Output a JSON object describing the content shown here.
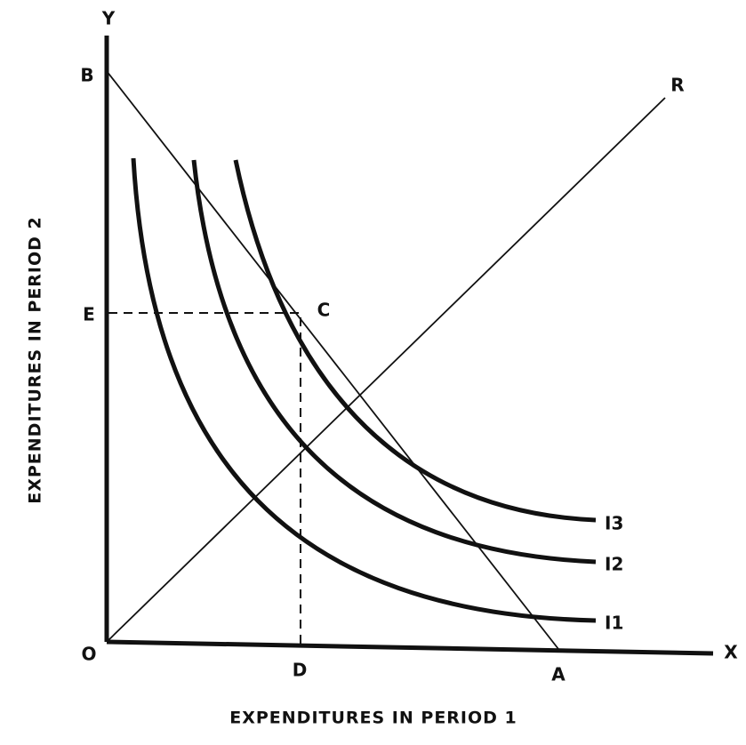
{
  "diagram": {
    "axes": {
      "x_label": "EXPENDITURES IN PERIOD 1",
      "y_label": "EXPENDITURES IN PERIOD 2",
      "x_name": "X",
      "y_name": "Y",
      "origin": "O"
    },
    "points": {
      "b": "B",
      "a": "A",
      "c": "C",
      "d": "D",
      "e": "E",
      "r": "R"
    },
    "curves": [
      "I1",
      "I2",
      "I3"
    ]
  }
}
